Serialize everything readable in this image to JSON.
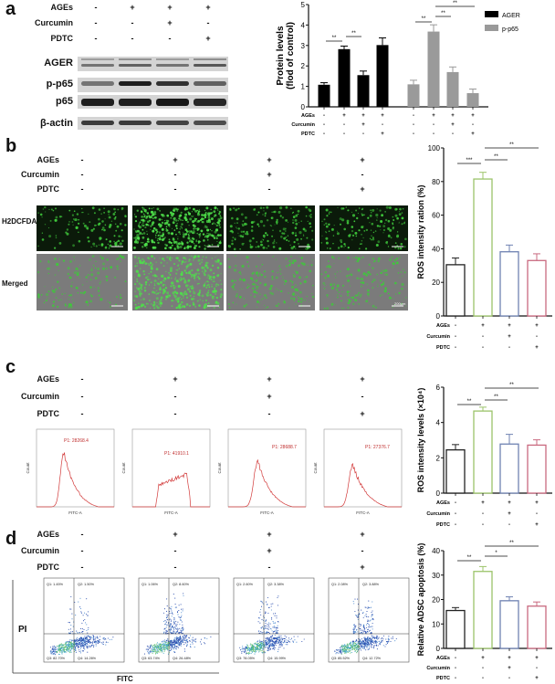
{
  "conditions": {
    "labels": [
      "AGEs",
      "Curcumin",
      "PDTC"
    ],
    "values": [
      [
        "-",
        "+",
        "+",
        "+"
      ],
      [
        "-",
        "-",
        "+",
        "-"
      ],
      [
        "-",
        "-",
        "-",
        "+"
      ]
    ]
  },
  "panel_a": {
    "label": "a",
    "blot_rows": [
      "AGER",
      "p-p65",
      "p65",
      "β-actin"
    ]
  },
  "panel_b": {
    "label": "b",
    "image_rows": [
      "H2DCFDA",
      "Merged"
    ],
    "scale_bar_text": "200μm"
  },
  "panel_c": {
    "label": "c",
    "histograms": [
      {
        "peak_label": "P1: 28268.4",
        "x_axis": "FITC-A",
        "y_axis": "Count"
      },
      {
        "peak_label": "P1: 41910.1",
        "x_axis": "FITC-A",
        "y_axis": "Count"
      },
      {
        "peak_label": "P1: 28688.7",
        "x_axis": "FITC-A",
        "y_axis": "Count"
      },
      {
        "peak_label": "P1: 27376.7",
        "x_axis": "FITC-A",
        "y_axis": "Count"
      }
    ]
  },
  "panel_d": {
    "label": "d",
    "y_axis": "PI",
    "x_axis": "FITC",
    "quadrants": [
      {
        "q1": "Q1: 1.45%",
        "q2": "Q2: 1.50%",
        "q3": "Q3: 82.70%",
        "q4": "Q4: 14.26%"
      },
      {
        "q1": "Q1: 1.06%",
        "q2": "Q2: 8.60%",
        "q3": "Q3: 63.74%",
        "q4": "Q4: 26.48%"
      },
      {
        "q1": "Q1: 2.60%",
        "q2": "Q2: 3.38%",
        "q3": "Q3: 78.05%",
        "q4": "Q4: 15.99%"
      },
      {
        "q1": "Q1: 2.08%",
        "q2": "Q2: 3.88%",
        "q3": "Q3: 85.52%",
        "q4": "Q4: 12.72%"
      }
    ]
  },
  "colors": {
    "ager": "#000000",
    "p_p65": "#9a9a9a",
    "control": "#222222",
    "ages": "#9cc46a",
    "curcumin": "#6f82b2",
    "pdtc": "#c9697f"
  },
  "chart_data": [
    {
      "type": "bar",
      "panel": "a",
      "ylabel": "Protein levels\n(flod of control)",
      "ylim": [
        0,
        5
      ],
      "yticks": [
        0,
        1,
        2,
        3,
        4,
        5
      ],
      "legend_position": "top-right",
      "categories": [
        "Control",
        "AGEs",
        "AGEs+Curcumin",
        "AGEs+PDTC"
      ],
      "series": [
        {
          "name": "AGER",
          "values": [
            1.08,
            2.82,
            1.55,
            3.02
          ],
          "errors": [
            0.1,
            0.15,
            0.2,
            0.35
          ]
        },
        {
          "name": "p-p65",
          "values": [
            1.1,
            3.68,
            1.7,
            0.67
          ],
          "errors": [
            0.2,
            0.33,
            0.25,
            0.2
          ]
        }
      ],
      "significance": [
        {
          "series": 0,
          "from": 0,
          "to": 1,
          "label": "**"
        },
        {
          "series": 0,
          "from": 1,
          "to": 2,
          "label": "**"
        },
        {
          "series": 1,
          "from": 0,
          "to": 1,
          "label": "**"
        },
        {
          "series": 1,
          "from": 1,
          "to": 2,
          "label": "**"
        },
        {
          "series": 1,
          "from": 1,
          "to": 3,
          "label": "**"
        }
      ]
    },
    {
      "type": "bar",
      "panel": "b",
      "ylabel": "ROS intensity ration (%)",
      "ylim": [
        0,
        100
      ],
      "yticks": [
        0,
        20,
        40,
        60,
        80,
        100
      ],
      "categories": [
        "Control",
        "AGEs",
        "AGEs+Curcumin",
        "AGEs+PDTC"
      ],
      "values": [
        30.5,
        81.5,
        38.2,
        33.0
      ],
      "errors": [
        4,
        4,
        4,
        4
      ],
      "significance": [
        {
          "from": 0,
          "to": 1,
          "label": "***"
        },
        {
          "from": 1,
          "to": 2,
          "label": "**"
        },
        {
          "from": 1,
          "to": 3,
          "label": "**"
        }
      ]
    },
    {
      "type": "bar",
      "panel": "c",
      "ylabel": "ROS intensity levels (×10⁴)",
      "ylim": [
        0,
        6
      ],
      "yticks": [
        0,
        2,
        4,
        6
      ],
      "categories": [
        "Control",
        "AGEs",
        "AGEs+Curcumin",
        "AGEs+PDTC"
      ],
      "values": [
        2.45,
        4.65,
        2.78,
        2.72
      ],
      "errors": [
        0.3,
        0.22,
        0.55,
        0.3
      ],
      "significance": [
        {
          "from": 0,
          "to": 1,
          "label": "**"
        },
        {
          "from": 1,
          "to": 2,
          "label": "**"
        },
        {
          "from": 1,
          "to": 3,
          "label": "**"
        }
      ]
    },
    {
      "type": "bar",
      "panel": "d",
      "ylabel": "Relative ADSC apoptosis (%)",
      "ylim": [
        0,
        40
      ],
      "yticks": [
        0,
        10,
        20,
        30,
        40
      ],
      "categories": [
        "Control",
        "AGEs",
        "AGEs+Curcumin",
        "AGEs+PDTC"
      ],
      "values": [
        15.5,
        31.5,
        19.5,
        17.3
      ],
      "errors": [
        1.2,
        2.0,
        1.6,
        1.7
      ],
      "significance": [
        {
          "from": 0,
          "to": 1,
          "label": "**"
        },
        {
          "from": 1,
          "to": 2,
          "label": "*"
        },
        {
          "from": 1,
          "to": 3,
          "label": "**"
        }
      ]
    }
  ]
}
